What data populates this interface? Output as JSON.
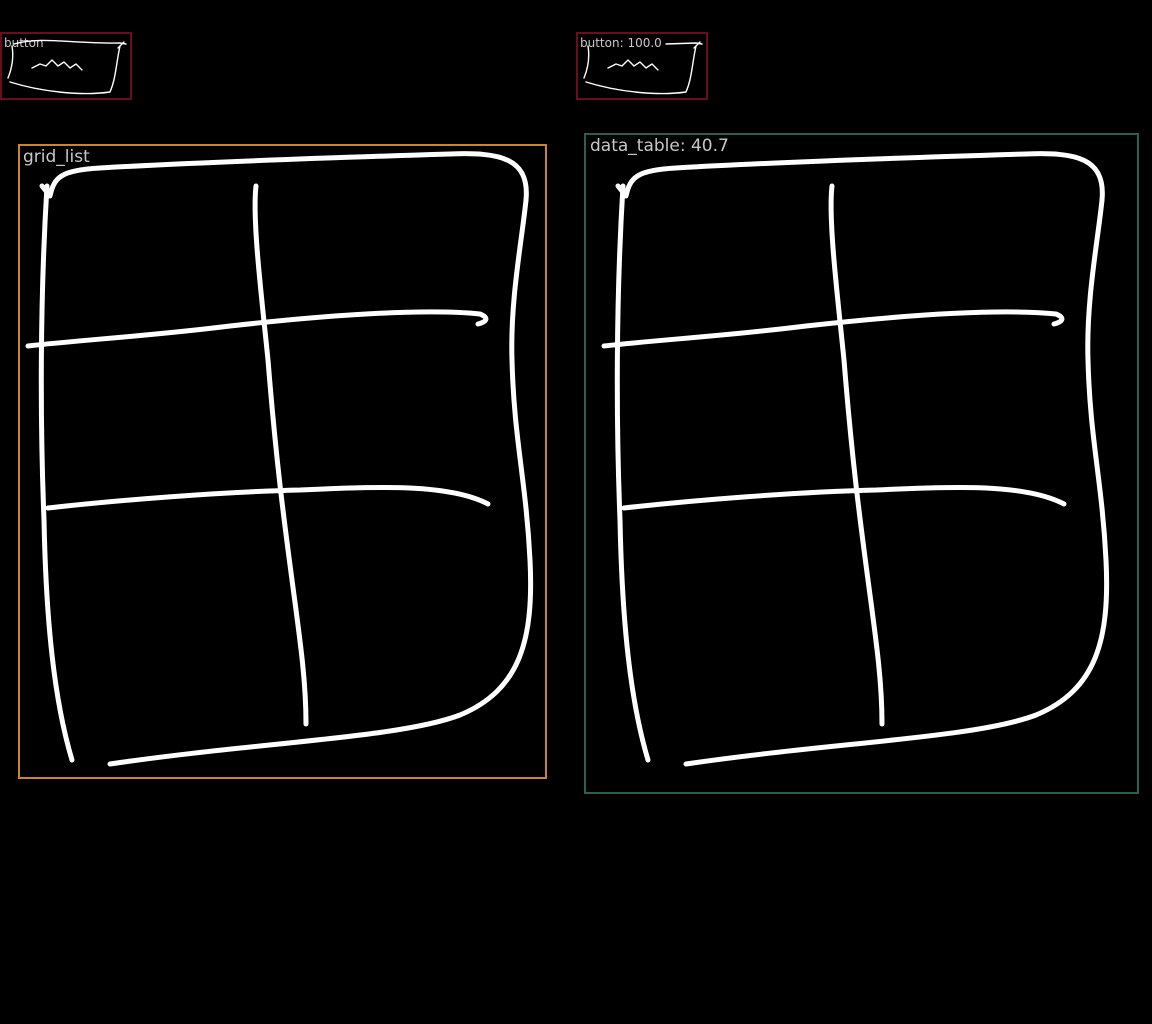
{
  "colors": {
    "background": "#000000",
    "button_border": "#6b0e1c",
    "grid_list_border": "#c9862a",
    "data_table_border": "#2e5e4e",
    "sketch_stroke": "#ffffff",
    "label_text": "#c8c8c8"
  },
  "detections": [
    {
      "label": "button",
      "type": "button"
    },
    {
      "label": "button: 100.0",
      "type": "button"
    },
    {
      "label": "grid_list",
      "type": "grid_list"
    },
    {
      "label": "data_table: 40.7",
      "type": "data_table"
    }
  ]
}
